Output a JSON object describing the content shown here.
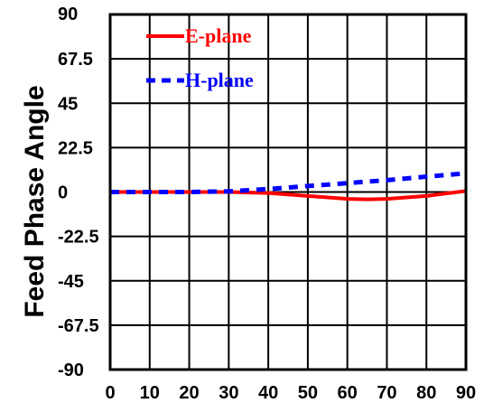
{
  "chart_data": {
    "type": "line",
    "title": "",
    "xlabel": "",
    "ylabel": "Feed Phase Angle",
    "xlim": [
      0,
      90
    ],
    "ylim": [
      -90,
      90
    ],
    "x_ticks": [
      "0",
      "10",
      "20",
      "30",
      "40",
      "50",
      "60",
      "70",
      "80",
      "90"
    ],
    "y_ticks": [
      "90",
      "67.5",
      "45",
      "22.5",
      "0",
      "-22.5",
      "-45",
      "-67.5",
      "-90"
    ],
    "grid": true,
    "legend_position": "top-left",
    "series": [
      {
        "name": "E-plane",
        "color": "#ff0000",
        "style": "solid",
        "x": [
          0,
          10,
          20,
          30,
          40,
          50,
          60,
          65,
          70,
          80,
          90
        ],
        "y": [
          0,
          0,
          0,
          0,
          -0.5,
          -2,
          -3.5,
          -3.7,
          -3.5,
          -2,
          0.5
        ]
      },
      {
        "name": "H-plane",
        "color": "#0000ff",
        "style": "dashed",
        "x": [
          0,
          10,
          20,
          30,
          40,
          50,
          60,
          70,
          80,
          90
        ],
        "y": [
          0,
          0,
          0,
          0.3,
          1.5,
          3,
          4.5,
          6,
          7.8,
          9.5
        ]
      }
    ]
  }
}
